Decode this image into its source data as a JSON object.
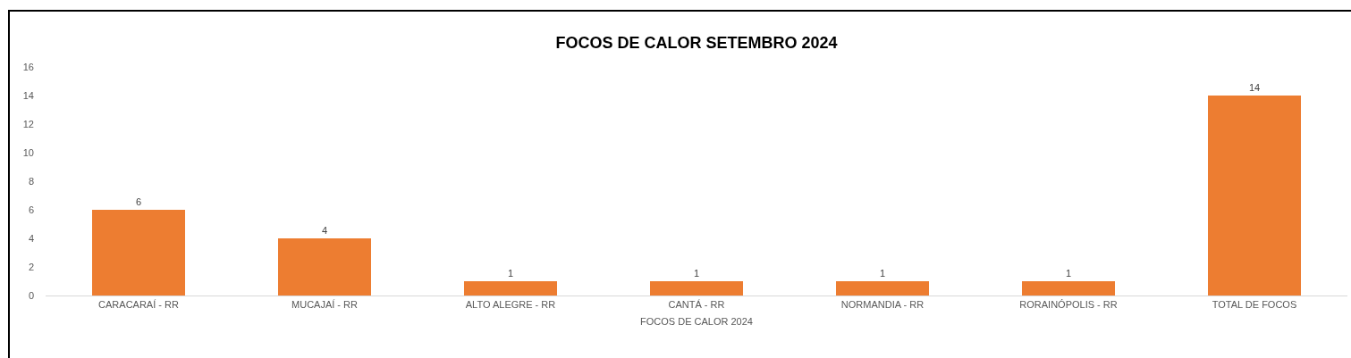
{
  "chart_data": {
    "type": "bar",
    "title": "FOCOS DE CALOR SETEMBRO 2024",
    "xlabel": "FOCOS DE CALOR 2024",
    "categories": [
      "CARACARAÍ - RR",
      "MUCAJAÍ - RR",
      "ALTO ALEGRE - RR",
      "CANTÁ - RR",
      "NORMANDIA - RR",
      "RORAINÓPOLIS - RR",
      "TOTAL DE FOCOS"
    ],
    "values": [
      6,
      4,
      1,
      1,
      1,
      1,
      14
    ],
    "color": "#ed7d31",
    "ylim": [
      0,
      16
    ],
    "yticks": [
      0,
      2,
      4,
      6,
      8,
      10,
      12,
      14,
      16
    ],
    "grid": false,
    "data_labels": true
  }
}
